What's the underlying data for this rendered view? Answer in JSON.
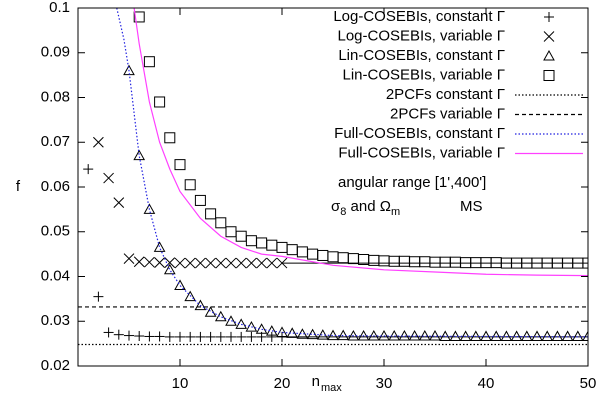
{
  "chart_data": {
    "type": "line",
    "xlabel": "n",
    "xlabel_sub": "max",
    "ylabel": "f",
    "xlim": [
      0,
      50
    ],
    "xticks": [
      10,
      20,
      30,
      40,
      50
    ],
    "ylim": [
      0.02,
      0.1
    ],
    "yticks": [
      0.02,
      0.03,
      0.04,
      0.05,
      0.06,
      0.07,
      0.08,
      0.09,
      0.1
    ],
    "legend": "top-right",
    "annotations": {
      "range": "angular range [1',400']",
      "sigma": "σ",
      "sigma_sub": "8",
      "and_omega": " and Ω",
      "omega_sub": "m",
      "ms": "MS"
    },
    "series": [
      {
        "name": "Log-COSEBIs, constant Γ",
        "color": "#000000",
        "marker": "plus",
        "line": "none",
        "x": [
          1,
          2,
          3,
          4,
          5,
          6,
          7,
          8,
          9,
          10,
          11,
          12,
          13,
          14,
          15,
          16,
          17,
          18,
          19,
          20
        ],
        "values": [
          0.064,
          0.0355,
          0.0275,
          0.027,
          0.0268,
          0.0267,
          0.0266,
          0.0266,
          0.0265,
          0.0265,
          0.0265,
          0.0265,
          0.0265,
          0.0265,
          0.0265,
          0.0265,
          0.0265,
          0.0265,
          0.0265,
          0.0265
        ]
      },
      {
        "name": "Log-COSEBIs, variable  Γ",
        "color": "#000000",
        "marker": "cross",
        "line": "none",
        "x": [
          2,
          3,
          4,
          5,
          6,
          7,
          8,
          9,
          10,
          11,
          12,
          13,
          14,
          15,
          16,
          17,
          18,
          19,
          20
        ],
        "values": [
          0.07,
          0.062,
          0.0565,
          0.044,
          0.0433,
          0.0432,
          0.0431,
          0.0431,
          0.043,
          0.043,
          0.043,
          0.043,
          0.043,
          0.043,
          0.043,
          0.043,
          0.043,
          0.043,
          0.043
        ]
      },
      {
        "name": "Lin-COSEBIs, constant Γ",
        "color": "#000000",
        "marker": "triangle",
        "line": "none",
        "x": [
          5,
          6,
          7,
          8,
          9,
          10,
          11,
          12,
          13,
          14,
          15,
          16,
          17,
          18,
          19,
          20,
          21,
          22,
          23,
          24,
          25,
          26,
          27,
          28,
          29,
          30,
          31,
          32,
          33,
          34,
          35,
          36,
          37,
          38,
          39,
          40,
          41,
          42,
          43,
          44,
          45,
          46,
          47,
          48,
          49,
          50
        ],
        "values": [
          0.086,
          0.067,
          0.055,
          0.0465,
          0.0415,
          0.038,
          0.0355,
          0.0335,
          0.032,
          0.031,
          0.03,
          0.0293,
          0.0287,
          0.0282,
          0.0278,
          0.0275,
          0.0273,
          0.0271,
          0.027,
          0.0269,
          0.0268,
          0.0268,
          0.0267,
          0.0267,
          0.0267,
          0.0267,
          0.0267,
          0.0267,
          0.0267,
          0.0267,
          0.0267,
          0.0266,
          0.0266,
          0.0266,
          0.0266,
          0.0266,
          0.0266,
          0.0266,
          0.0266,
          0.0266,
          0.0266,
          0.0266,
          0.0266,
          0.0266,
          0.0266,
          0.0266
        ]
      },
      {
        "name": "Lin-COSEBIs, variable Γ",
        "color": "#000000",
        "marker": "square",
        "line": "none",
        "x": [
          6,
          7,
          8,
          9,
          10,
          11,
          12,
          13,
          14,
          15,
          16,
          17,
          18,
          19,
          20,
          21,
          22,
          23,
          24,
          25,
          26,
          27,
          28,
          29,
          30,
          31,
          32,
          33,
          34,
          35,
          36,
          37,
          38,
          39,
          40,
          41,
          42,
          43,
          44,
          45,
          46,
          47,
          48,
          49,
          50
        ],
        "values": [
          0.098,
          0.088,
          0.079,
          0.071,
          0.065,
          0.0605,
          0.057,
          0.054,
          0.052,
          0.05,
          0.049,
          0.048,
          0.0475,
          0.047,
          0.0465,
          0.046,
          0.0455,
          0.045,
          0.0447,
          0.0444,
          0.0442,
          0.044,
          0.0438,
          0.0436,
          0.0435,
          0.0434,
          0.0434,
          0.0433,
          0.0433,
          0.0432,
          0.0432,
          0.0432,
          0.0431,
          0.0431,
          0.0431,
          0.0431,
          0.043,
          0.043,
          0.043,
          0.043,
          0.043,
          0.043,
          0.043,
          0.043,
          0.043
        ]
      },
      {
        "name": "2PCFs constant Γ",
        "color": "#000000",
        "marker": "none",
        "line": "dotted",
        "x": [
          0,
          50
        ],
        "values": [
          0.0248,
          0.0248
        ]
      },
      {
        "name": "2PCFs variable Γ",
        "color": "#000000",
        "marker": "none",
        "line": "dashed",
        "x": [
          0,
          50
        ],
        "values": [
          0.0332,
          0.0332
        ]
      },
      {
        "name": "Full-COSEBIs, constant Γ",
        "color": "#2020e0",
        "marker": "none",
        "line": "dotted",
        "x": [
          3.8,
          4.5,
          5,
          6,
          7,
          8,
          9,
          10,
          12,
          14,
          16,
          18,
          20,
          25,
          30,
          40,
          50
        ],
        "values": [
          0.1,
          0.093,
          0.086,
          0.067,
          0.055,
          0.0465,
          0.0415,
          0.038,
          0.0335,
          0.031,
          0.0293,
          0.0282,
          0.0275,
          0.0268,
          0.0267,
          0.0266,
          0.0265
        ]
      },
      {
        "name": "Full-COSEBIs, variable Γ",
        "color": "#ff40ff",
        "marker": "none",
        "line": "solid",
        "x": [
          5.5,
          6,
          7,
          8,
          9,
          10,
          12,
          14,
          16,
          18,
          20,
          25,
          30,
          35,
          40,
          45,
          50
        ],
        "values": [
          0.1,
          0.092,
          0.079,
          0.07,
          0.064,
          0.059,
          0.053,
          0.049,
          0.0465,
          0.045,
          0.0445,
          0.0425,
          0.0415,
          0.041,
          0.0405,
          0.0403,
          0.0402
        ]
      }
    ],
    "lines": [
      {
        "color": "#000000",
        "x": [
          20,
          50
        ],
        "values": [
          0.0265,
          0.0265
        ]
      },
      {
        "color": "#000000",
        "x": [
          20,
          50
        ],
        "values": [
          0.043,
          0.043
        ]
      }
    ]
  }
}
